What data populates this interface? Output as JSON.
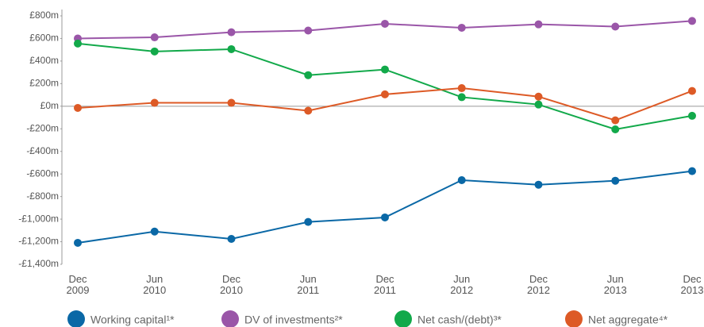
{
  "chart_data": {
    "type": "line",
    "categories": [
      "Dec 2009",
      "Jun 2010",
      "Dec 2010",
      "Jun 2011",
      "Dec 2011",
      "Jun 2012",
      "Dec 2012",
      "Jun 2013",
      "Dec 2013"
    ],
    "series": [
      {
        "name": "Working capital¹*",
        "color": "#0a68a6",
        "values": [
          -1210,
          -1110,
          -1175,
          -1025,
          -985,
          -655,
          -695,
          -660,
          -575
        ]
      },
      {
        "name": "DV of investments²*",
        "color": "#9a56a8",
        "values": [
          600,
          610,
          655,
          670,
          730,
          695,
          725,
          705,
          755
        ]
      },
      {
        "name": "Net cash/(debt)³*",
        "color": "#12a94a",
        "values": [
          555,
          485,
          505,
          275,
          325,
          80,
          15,
          -205,
          -85
        ]
      },
      {
        "name": "Net aggregate⁴*",
        "color": "#dd5a26",
        "values": [
          -15,
          30,
          30,
          -40,
          105,
          160,
          85,
          -125,
          135
        ]
      }
    ],
    "ylim": [
      -1400,
      800
    ],
    "yticks": [
      {
        "value": 800,
        "label": "£800m"
      },
      {
        "value": 600,
        "label": "£600m"
      },
      {
        "value": 400,
        "label": "£400m"
      },
      {
        "value": 200,
        "label": "£200m"
      },
      {
        "value": 0,
        "label": "£0m"
      },
      {
        "value": -200,
        "label": "-£200m"
      },
      {
        "value": -400,
        "label": "-£400m"
      },
      {
        "value": -600,
        "label": "-£600m"
      },
      {
        "value": -800,
        "label": "-£800m"
      },
      {
        "value": -1000,
        "label": "-£1,000m"
      },
      {
        "value": -1200,
        "label": "-£1,200m"
      },
      {
        "value": -1400,
        "label": "-£1,400m"
      }
    ],
    "grid": false
  }
}
